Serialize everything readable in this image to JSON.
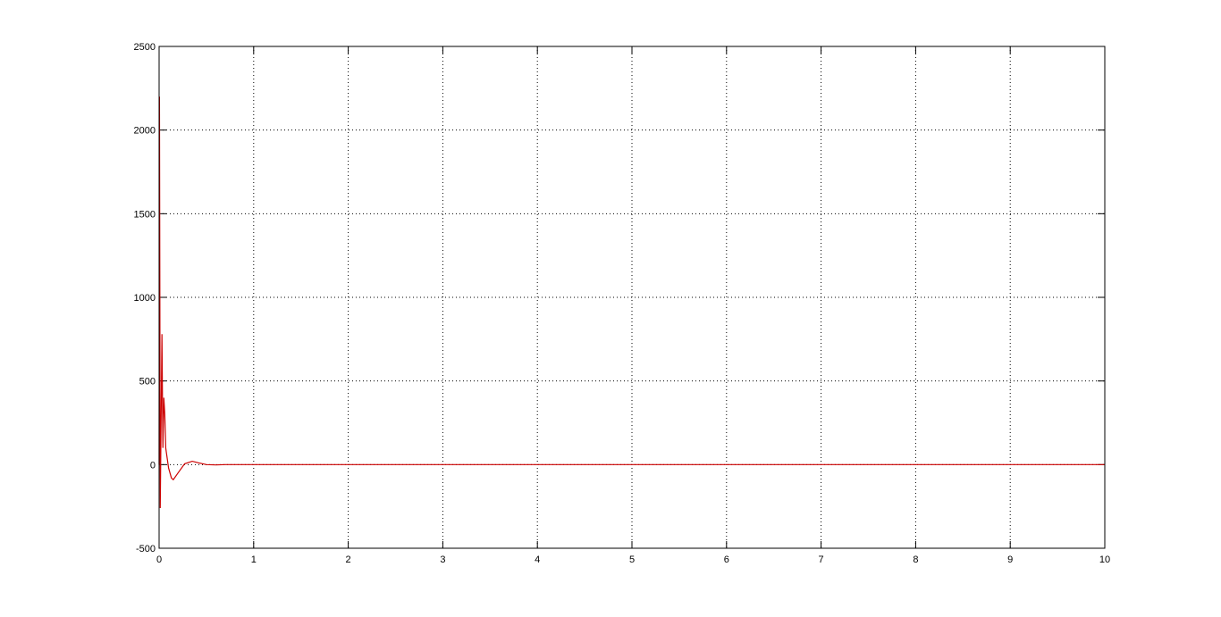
{
  "chart_data": {
    "type": "line",
    "title": "",
    "xlabel": "",
    "ylabel": "",
    "xlim": [
      0,
      10
    ],
    "ylim": [
      -500,
      2500
    ],
    "grid": true,
    "xticks": [
      "0",
      "1",
      "2",
      "3",
      "4",
      "5",
      "6",
      "7",
      "8",
      "9",
      "10"
    ],
    "yticks": [
      "-500",
      "0",
      "500",
      "1000",
      "1500",
      "2000",
      "2500"
    ],
    "series": [
      {
        "color": "#cc0000",
        "x": [
          0,
          0.004,
          0.008,
          0.012,
          0.02,
          0.03,
          0.04,
          0.05,
          0.06,
          0.07,
          0.08,
          0.1,
          0.13,
          0.15,
          0.2,
          0.27,
          0.35,
          0.42,
          0.5,
          0.6,
          0.7,
          10
        ],
        "y": [
          0,
          2200,
          1000,
          -260,
          200,
          780,
          100,
          400,
          300,
          100,
          60,
          -20,
          -80,
          -90,
          -50,
          5,
          20,
          10,
          0,
          -2,
          0,
          0
        ]
      }
    ]
  }
}
